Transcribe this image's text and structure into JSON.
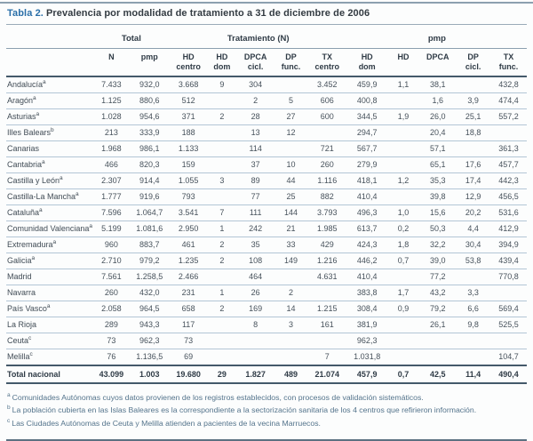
{
  "title": {
    "label": "Tabla 2.",
    "text": "Prevalencia por modalidad de tratamiento a 31 de diciembre de 2006"
  },
  "colors": {
    "accent_blue": "#2a6fa8",
    "dark_rule": "#44596a",
    "light_rule": "#b3c6d6",
    "medium_rule": "#8ca0af",
    "footnote_text": "#54748c"
  },
  "table": {
    "groups": [
      {
        "label": "Total",
        "span": 2
      },
      {
        "label": "Tratamiento (N)",
        "span": 5
      },
      {
        "label": "pmp",
        "span": 5
      }
    ],
    "columns": [
      {
        "line1": "N",
        "line2": ""
      },
      {
        "line1": "pmp",
        "line2": ""
      },
      {
        "line1": "HD",
        "line2": "centro"
      },
      {
        "line1": "HD",
        "line2": "dom"
      },
      {
        "line1": "DPCA",
        "line2": "cicl."
      },
      {
        "line1": "DP",
        "line2": "func."
      },
      {
        "line1": "TX",
        "line2": "centro"
      },
      {
        "line1": "HD",
        "line2": "dom"
      },
      {
        "line1": "HD",
        "line2": ""
      },
      {
        "line1": "DPCA",
        "line2": ""
      },
      {
        "line1": "DP",
        "line2": "cicl."
      },
      {
        "line1": "TX",
        "line2": "func."
      }
    ],
    "rows": [
      {
        "region": "Andalucía",
        "sup": "a",
        "values": [
          "7.433",
          "932,0",
          "3.668",
          "9",
          "304",
          "",
          "3.452",
          "459,9",
          "1,1",
          "38,1",
          "",
          "432,8"
        ]
      },
      {
        "region": "Aragón",
        "sup": "a",
        "values": [
          "1.125",
          "880,6",
          "512",
          "",
          "2",
          "5",
          "606",
          "400,8",
          "",
          "1,6",
          "3,9",
          "474,4"
        ]
      },
      {
        "region": "Asturias",
        "sup": "a",
        "values": [
          "1.028",
          "954,6",
          "371",
          "2",
          "28",
          "27",
          "600",
          "344,5",
          "1,9",
          "26,0",
          "25,1",
          "557,2"
        ]
      },
      {
        "region": "Illes Balears",
        "sup": "b",
        "values": [
          "213",
          "333,9",
          "188",
          "",
          "13",
          "12",
          "",
          "294,7",
          "",
          "20,4",
          "18,8",
          ""
        ]
      },
      {
        "region": "Canarias",
        "sup": "",
        "values": [
          "1.968",
          "986,1",
          "1.133",
          "",
          "114",
          "",
          "721",
          "567,7",
          "",
          "57,1",
          "",
          "361,3"
        ]
      },
      {
        "region": "Cantabria",
        "sup": "a",
        "values": [
          "466",
          "820,3",
          "159",
          "",
          "37",
          "10",
          "260",
          "279,9",
          "",
          "65,1",
          "17,6",
          "457,7"
        ]
      },
      {
        "region": "Castilla y León",
        "sup": "a",
        "values": [
          "2.307",
          "914,4",
          "1.055",
          "3",
          "89",
          "44",
          "1.116",
          "418,1",
          "1,2",
          "35,3",
          "17,4",
          "442,3"
        ]
      },
      {
        "region": "Castilla-La Mancha",
        "sup": "a",
        "values": [
          "1.777",
          "919,6",
          "793",
          "",
          "77",
          "25",
          "882",
          "410,4",
          "",
          "39,8",
          "12,9",
          "456,5"
        ]
      },
      {
        "region": "Cataluña",
        "sup": "a",
        "values": [
          "7.596",
          "1.064,7",
          "3.541",
          "7",
          "111",
          "144",
          "3.793",
          "496,3",
          "1,0",
          "15,6",
          "20,2",
          "531,6"
        ]
      },
      {
        "region": "Comunidad Valenciana",
        "sup": "a",
        "values": [
          "5.199",
          "1.081,6",
          "2.950",
          "1",
          "242",
          "21",
          "1.985",
          "613,7",
          "0,2",
          "50,3",
          "4,4",
          "412,9"
        ]
      },
      {
        "region": "Extremadura",
        "sup": "a",
        "values": [
          "960",
          "883,7",
          "461",
          "2",
          "35",
          "33",
          "429",
          "424,3",
          "1,8",
          "32,2",
          "30,4",
          "394,9"
        ]
      },
      {
        "region": "Galicia",
        "sup": "a",
        "values": [
          "2.710",
          "979,2",
          "1.235",
          "2",
          "108",
          "149",
          "1.216",
          "446,2",
          "0,7",
          "39,0",
          "53,8",
          "439,4"
        ]
      },
      {
        "region": "Madrid",
        "sup": "",
        "values": [
          "7.561",
          "1.258,5",
          "2.466",
          "",
          "464",
          "",
          "4.631",
          "410,4",
          "",
          "77,2",
          "",
          "770,8"
        ]
      },
      {
        "region": "Navarra",
        "sup": "",
        "values": [
          "260",
          "432,0",
          "231",
          "1",
          "26",
          "2",
          "",
          "383,8",
          "1,7",
          "43,2",
          "3,3",
          ""
        ]
      },
      {
        "region": "País Vasco",
        "sup": "a",
        "values": [
          "2.058",
          "964,5",
          "658",
          "2",
          "169",
          "14",
          "1.215",
          "308,4",
          "0,9",
          "79,2",
          "6,6",
          "569,4"
        ]
      },
      {
        "region": "La Rioja",
        "sup": "",
        "values": [
          "289",
          "943,3",
          "117",
          "",
          "8",
          "3",
          "161",
          "381,9",
          "",
          "26,1",
          "9,8",
          "525,5"
        ]
      },
      {
        "region": "Ceuta",
        "sup": "c",
        "values": [
          "73",
          "962,3",
          "73",
          "",
          "",
          "",
          "",
          "962,3",
          "",
          "",
          "",
          ""
        ]
      },
      {
        "region": "Melilla",
        "sup": "c",
        "values": [
          "76",
          "1.136,5",
          "69",
          "",
          "",
          "",
          "7",
          "1.031,8",
          "",
          "",
          "",
          "104,7"
        ]
      }
    ],
    "total": {
      "region": "Total nacional",
      "values": [
        "43.099",
        "1.003",
        "19.680",
        "29",
        "1.827",
        "489",
        "21.074",
        "457,9",
        "0,7",
        "42,5",
        "11,4",
        "490,4"
      ]
    }
  },
  "footnotes": [
    {
      "marker": "a",
      "text": "Comunidades Autónomas cuyos datos provienen de los registros establecidos, con procesos de validación sistemáticos."
    },
    {
      "marker": "b",
      "text": "La población cubierta en las Islas Baleares es la correspondiente a la sectorización sanitaria de los 4 centros que refirieron información."
    },
    {
      "marker": "c",
      "text": "Las Ciudades Autónomas de Ceuta y Melilla atienden a pacientes de la vecina Marruecos."
    }
  ]
}
